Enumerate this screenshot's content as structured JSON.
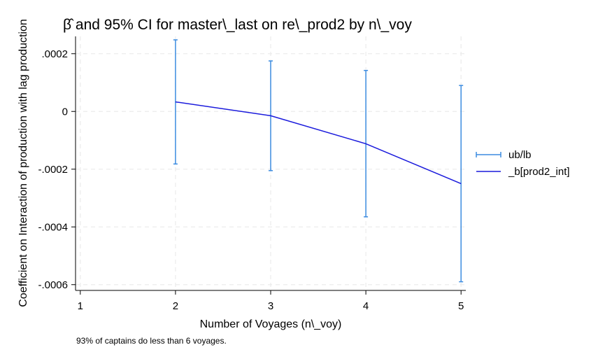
{
  "chart_data": {
    "type": "line",
    "title": "β̂ and 95% CI for master\\_last on re\\_prod2 by n\\_voy",
    "xlabel": "Number of Voyages (n\\_voy)",
    "ylabel": "Coefficient on Interaction of production with lag production",
    "note": "93% of captains do less than 6 voyages.",
    "xlim": [
      0.95,
      5.05
    ],
    "ylim": [
      -0.00062,
      0.00026
    ],
    "x_ticks": [
      1,
      2,
      3,
      4,
      5
    ],
    "x_tick_labels": [
      "1",
      "2",
      "3",
      "4",
      "5"
    ],
    "y_ticks": [
      0.0002,
      0,
      -0.0002,
      -0.0004,
      -0.0006
    ],
    "y_tick_labels": [
      ".0002",
      "0",
      "-.0002",
      "-.0004",
      "-.0006"
    ],
    "grid": true,
    "legend_position": "right",
    "series": [
      {
        "name": "ub/lb",
        "kind": "errorbar",
        "color": "#3c8ce0",
        "x": [
          2,
          3,
          4,
          5
        ],
        "upper": [
          0.000248,
          0.000175,
          0.000142,
          9e-05
        ],
        "lower": [
          -0.000182,
          -0.000205,
          -0.000365,
          -0.00059
        ]
      },
      {
        "name": "_b[prod2_int]",
        "kind": "line",
        "color": "#1a1adc",
        "x": [
          2,
          3,
          4,
          5
        ],
        "y": [
          3.3e-05,
          -1.5e-05,
          -0.000112,
          -0.00025
        ]
      }
    ]
  }
}
